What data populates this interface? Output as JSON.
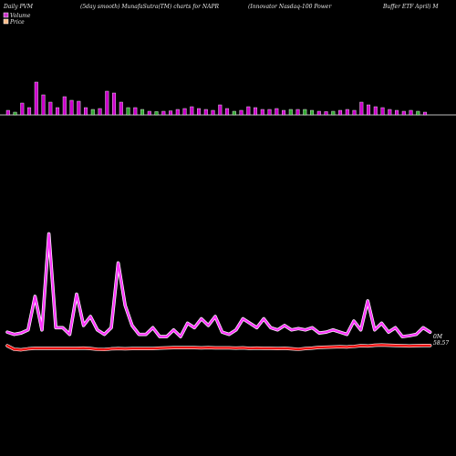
{
  "header": {
    "t1": "Daily PVM",
    "t2": "(5day smooth) MunafaSutra(TM) charts for NAPR",
    "t3": "(Innovator Nasdaq-100  Power",
    "t4": "Buffer ETF April) M"
  },
  "chart_data": {
    "type": "bar+line",
    "legend": [
      {
        "name": "Volume",
        "color": "#cc33cc"
      },
      {
        "name": "Price",
        "color": "#ffbb88"
      }
    ],
    "legend_position": "top-left",
    "volume_bars": [
      {
        "v": 2.5,
        "c": "up"
      },
      {
        "v": 1.5,
        "c": "down"
      },
      {
        "v": 6.5,
        "c": "up"
      },
      {
        "v": 4.0,
        "c": "up"
      },
      {
        "v": 18.0,
        "c": "up"
      },
      {
        "v": 11.0,
        "c": "up"
      },
      {
        "v": 7.0,
        "c": "up"
      },
      {
        "v": 4.0,
        "c": "up"
      },
      {
        "v": 10.0,
        "c": "up"
      },
      {
        "v": 8.0,
        "c": "up"
      },
      {
        "v": 7.5,
        "c": "up"
      },
      {
        "v": 4.0,
        "c": "up"
      },
      {
        "v": 3.0,
        "c": "down"
      },
      {
        "v": 3.5,
        "c": "up"
      },
      {
        "v": 13.0,
        "c": "up"
      },
      {
        "v": 12.0,
        "c": "up"
      },
      {
        "v": 7.0,
        "c": "up"
      },
      {
        "v": 4.0,
        "c": "down"
      },
      {
        "v": 4.0,
        "c": "up"
      },
      {
        "v": 3.0,
        "c": "down"
      },
      {
        "v": 2.0,
        "c": "up"
      },
      {
        "v": 1.8,
        "c": "down"
      },
      {
        "v": 2.0,
        "c": "up"
      },
      {
        "v": 2.2,
        "c": "up"
      },
      {
        "v": 3.0,
        "c": "up"
      },
      {
        "v": 3.5,
        "c": "up"
      },
      {
        "v": 4.5,
        "c": "up"
      },
      {
        "v": 3.5,
        "c": "up"
      },
      {
        "v": 3.0,
        "c": "up"
      },
      {
        "v": 2.5,
        "c": "up"
      },
      {
        "v": 5.5,
        "c": "up"
      },
      {
        "v": 3.5,
        "c": "up"
      },
      {
        "v": 2.0,
        "c": "down"
      },
      {
        "v": 2.5,
        "c": "up"
      },
      {
        "v": 4.5,
        "c": "up"
      },
      {
        "v": 4.0,
        "c": "up"
      },
      {
        "v": 3.0,
        "c": "up"
      },
      {
        "v": 3.0,
        "c": "up"
      },
      {
        "v": 3.5,
        "c": "up"
      },
      {
        "v": 2.5,
        "c": "up"
      },
      {
        "v": 3.0,
        "c": "down"
      },
      {
        "v": 3.0,
        "c": "up"
      },
      {
        "v": 3.0,
        "c": "down"
      },
      {
        "v": 2.5,
        "c": "down"
      },
      {
        "v": 2.0,
        "c": "up"
      },
      {
        "v": 1.8,
        "c": "up"
      },
      {
        "v": 2.0,
        "c": "down"
      },
      {
        "v": 2.5,
        "c": "up"
      },
      {
        "v": 3.0,
        "c": "up"
      },
      {
        "v": 2.5,
        "c": "up"
      },
      {
        "v": 7.0,
        "c": "up"
      },
      {
        "v": 5.5,
        "c": "up"
      },
      {
        "v": 4.5,
        "c": "up"
      },
      {
        "v": 4.0,
        "c": "up"
      },
      {
        "v": 3.0,
        "c": "up"
      },
      {
        "v": 2.5,
        "c": "up"
      },
      {
        "v": 2.0,
        "c": "up"
      },
      {
        "v": 2.5,
        "c": "up"
      },
      {
        "v": 2.0,
        "c": "down"
      },
      {
        "v": 1.5,
        "c": "up"
      }
    ],
    "volume_line": [
      2.0,
      1.5,
      1.8,
      2.5,
      10.0,
      2.5,
      24.0,
      3.0,
      3.0,
      1.5,
      10.5,
      3.5,
      5.5,
      2.5,
      1.5,
      3.0,
      17.5,
      8.0,
      3.5,
      1.5,
      1.5,
      3.0,
      1.0,
      1.0,
      2.5,
      1.0,
      4.0,
      3.0,
      5.0,
      3.5,
      5.5,
      2.0,
      1.5,
      2.5,
      5.0,
      4.0,
      3.0,
      5.0,
      3.0,
      2.5,
      3.5,
      2.5,
      2.8,
      2.5,
      3.0,
      1.8,
      2.0,
      2.5,
      2.0,
      1.5,
      4.5,
      2.5,
      9.0,
      2.5,
      4.0,
      2.0,
      3.0,
      1.0,
      1.2,
      1.5,
      3.0,
      2.0
    ],
    "price_line": [
      1.5,
      0.0,
      -0.2,
      0.2,
      0.4,
      0.4,
      0.4,
      0.4,
      0.4,
      0.4,
      0.4,
      0.5,
      0.3,
      0.0,
      -0.1,
      0.2,
      0.3,
      0.2,
      0.3,
      0.3,
      0.3,
      0.3,
      0.5,
      0.6,
      0.7,
      0.7,
      0.7,
      0.7,
      0.6,
      0.7,
      0.6,
      0.6,
      0.6,
      0.5,
      0.6,
      0.4,
      0.5,
      0.4,
      0.4,
      0.3,
      0.4,
      0.2,
      0.0,
      0.3,
      0.5,
      0.8,
      0.9,
      1.0,
      1.1,
      1.0,
      1.2,
      1.5,
      1.4,
      1.7,
      1.8,
      1.7,
      1.6,
      1.5,
      1.4,
      1.5,
      1.6,
      1.6
    ],
    "end_labels": {
      "volume": "0M",
      "price": "58.57"
    },
    "colors": {
      "volume_up": "#cc00cc",
      "volume_down": "#33aa33",
      "volume_line": "#ff33ff",
      "price_line": "#ee1111",
      "baseline": "#bbbbbb"
    }
  }
}
